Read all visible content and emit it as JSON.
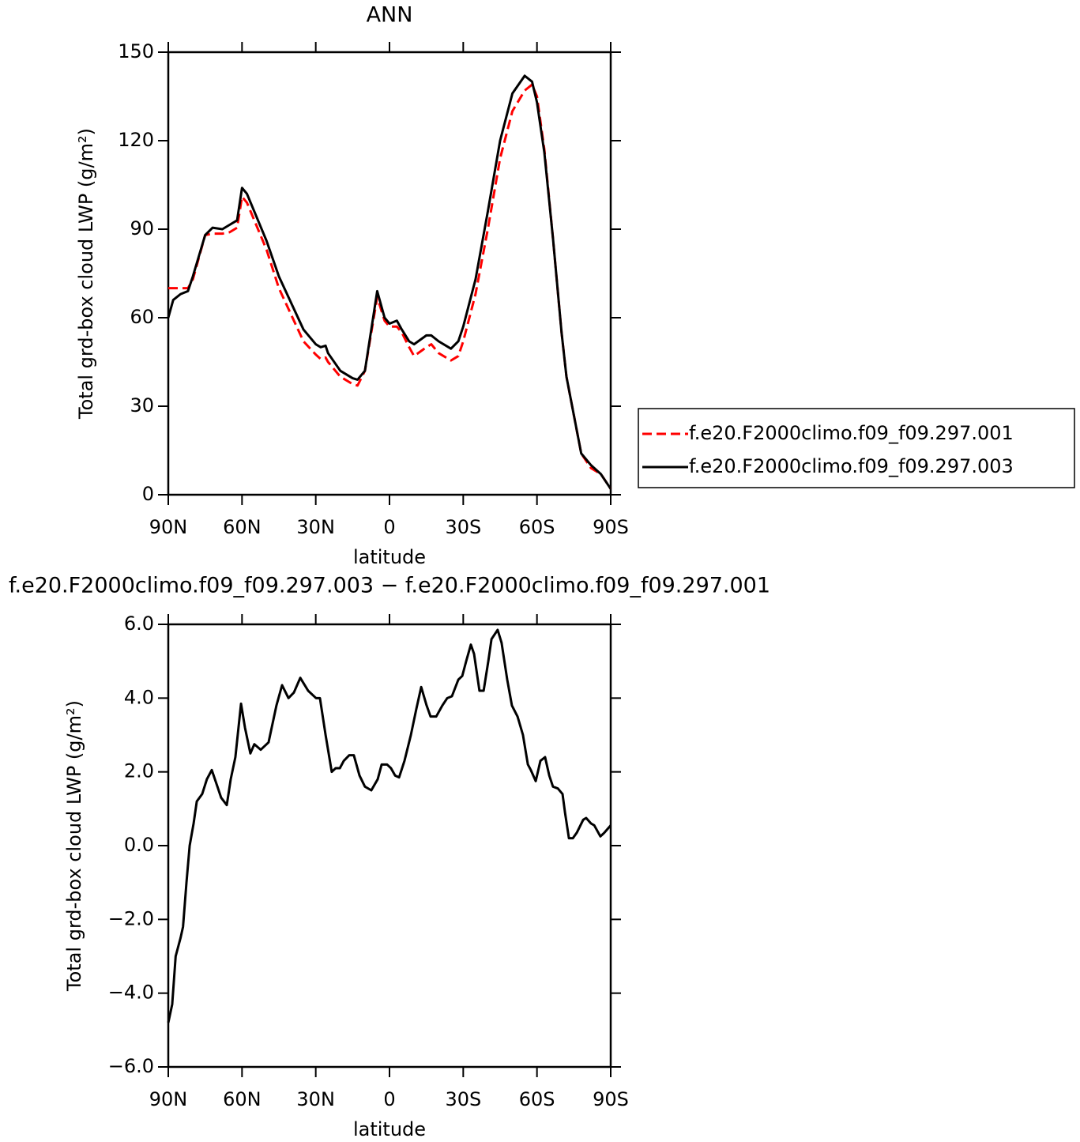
{
  "chart_data": [
    {
      "type": "line",
      "title": "ANN",
      "xlabel": "latitude",
      "ylabel": "Total grd-box cloud LWP (g/m²)",
      "x": [
        90,
        88,
        85,
        82,
        80,
        75,
        72,
        68,
        65,
        62,
        60,
        58,
        55,
        50,
        45,
        40,
        35,
        30,
        28,
        26,
        25,
        20,
        15,
        13,
        10,
        5,
        2,
        0,
        -3,
        -5,
        -8,
        -10,
        -15,
        -17,
        -20,
        -25,
        -28,
        -30,
        -35,
        -40,
        -45,
        -50,
        -55,
        -58,
        -60,
        -63,
        -66.5,
        -70,
        -72,
        -75,
        -78,
        -82,
        -86,
        -90
      ],
      "series": [
        {
          "name": "f.e20.F2000climo.f09_f09.297.001",
          "color": "#ff0000",
          "dash": "dashed",
          "values": [
            70,
            70,
            70,
            70,
            73,
            88,
            88.5,
            88.5,
            89,
            90.5,
            101,
            99,
            93,
            83,
            70,
            61,
            52,
            47.5,
            46,
            46.5,
            45,
            40,
            37.5,
            37,
            42,
            67,
            59,
            57,
            57,
            55,
            50,
            47,
            50,
            51,
            48,
            45.5,
            47,
            52,
            68,
            90,
            114,
            130,
            137,
            139,
            135,
            117,
            87,
            55,
            40,
            27,
            14,
            9,
            7,
            2
          ]
        },
        {
          "name": "f.e20.F2000climo.f09_f09.297.003",
          "color": "#000000",
          "dash": "solid",
          "values": [
            60,
            66,
            68,
            69,
            74,
            88,
            90.5,
            90,
            91.5,
            93,
            104,
            102,
            96,
            86,
            74,
            65,
            56,
            51,
            50,
            50.5,
            48,
            42,
            39.5,
            39,
            42,
            69,
            60,
            58,
            59,
            56,
            52,
            51,
            54,
            54,
            52,
            49.5,
            52,
            57,
            73,
            96,
            120,
            136,
            142,
            140,
            133,
            116,
            87,
            55,
            40,
            27,
            14,
            10,
            7,
            2
          ]
        }
      ],
      "xlim": [
        90,
        -90
      ],
      "xticks": [
        {
          "value": 90,
          "label": "90N"
        },
        {
          "value": 60,
          "label": "60N"
        },
        {
          "value": 30,
          "label": "30N"
        },
        0,
        {
          "value": -30,
          "label": "30S"
        },
        {
          "value": -60,
          "label": "60S"
        },
        {
          "value": -90,
          "label": "90S"
        }
      ],
      "ylim": [
        0,
        150
      ],
      "yticks": [
        0,
        30,
        60,
        90,
        120,
        150
      ],
      "legend": "right"
    },
    {
      "type": "line",
      "title": "f.e20.F2000climo.f09_f09.297.003 − f.e20.F2000climo.f09_f09.297.001",
      "xlabel": "latitude",
      "ylabel": "Total grd-box cloud LWP (g/m²)",
      "x": [
        90,
        88.4,
        87,
        85,
        84,
        82.6,
        81.3,
        79.7,
        78.4,
        76.2,
        74.3,
        72.3,
        70,
        68.5,
        66.2,
        64.6,
        62.7,
        60.4,
        58.8,
        56.6,
        55,
        52.4,
        49.2,
        46,
        43.7,
        41.1,
        38.9,
        36.3,
        33.1,
        29.9,
        28.3,
        26,
        23.5,
        21.9,
        20.2,
        18.6,
        16.4,
        14.5,
        12.2,
        10,
        7.4,
        4.8,
        3.2,
        1,
        -0.6,
        -2.3,
        -3.9,
        -6.1,
        -8.7,
        -10.9,
        -12.9,
        -15.1,
        -16.7,
        -19,
        -21.5,
        -23.5,
        -25.4,
        -28,
        -29.6,
        -31.2,
        -33.1,
        -34.4,
        -36.6,
        -38.3,
        -40.2,
        -41.5,
        -44,
        -45.6,
        -47.9,
        -49.8,
        -52.1,
        -54.3,
        -56.3,
        -57.5,
        -59.5,
        -61.4,
        -63.3,
        -65,
        -66.5,
        -68.5,
        -70.4,
        -71.4,
        -73,
        -74.6,
        -76.2,
        -78.8,
        -80,
        -82,
        -83.3,
        -85.8,
        -87.4,
        -90
      ],
      "series": [
        {
          "name": "f.e20.F2000climo.f09_f09.297.003 − f.e20.F2000climo.f09_f09.297.001",
          "color": "#000000",
          "dash": "solid",
          "values": [
            -4.8,
            -4.3,
            -3.0,
            -2.5,
            -2.2,
            -1.0,
            0,
            0.6,
            1.2,
            1.4,
            1.8,
            2.05,
            1.6,
            1.3,
            1.1,
            1.8,
            2.4,
            3.85,
            3.2,
            2.5,
            2.75,
            2.6,
            2.8,
            3.8,
            4.35,
            4.0,
            4.15,
            4.55,
            4.2,
            4.0,
            4.0,
            3.0,
            2.0,
            2.1,
            2.1,
            2.3,
            2.45,
            2.45,
            1.9,
            1.6,
            1.5,
            1.8,
            2.2,
            2.2,
            2.1,
            1.9,
            1.85,
            2.3,
            3.0,
            3.7,
            4.3,
            3.8,
            3.5,
            3.5,
            3.8,
            4.0,
            4.05,
            4.5,
            4.6,
            5.0,
            5.45,
            5.2,
            4.2,
            4.2,
            5.0,
            5.6,
            5.85,
            5.5,
            4.5,
            3.8,
            3.5,
            3.0,
            2.2,
            2.05,
            1.75,
            2.3,
            2.4,
            1.9,
            1.6,
            1.55,
            1.4,
            0.9,
            0.2,
            0.2,
            0.35,
            0.7,
            0.75,
            0.6,
            0.55,
            0.25,
            0.35,
            0.55
          ]
        }
      ],
      "xlim": [
        90,
        -90
      ],
      "xticks": [
        {
          "value": 90,
          "label": "90N"
        },
        {
          "value": 60,
          "label": "60N"
        },
        {
          "value": 30,
          "label": "30N"
        },
        0,
        {
          "value": -30,
          "label": "30S"
        },
        {
          "value": -60,
          "label": "60S"
        },
        {
          "value": -90,
          "label": "90S"
        }
      ],
      "ylim": [
        -6,
        6
      ],
      "yticks": [
        {
          "value": -6,
          "label": "−6.0"
        },
        {
          "value": -4,
          "label": "−4.0"
        },
        {
          "value": -2,
          "label": "−2.0"
        },
        {
          "value": 0,
          "label": "0.0"
        },
        {
          "value": 2,
          "label": "2.0"
        },
        {
          "value": 4,
          "label": "4.0"
        },
        {
          "value": 6,
          "label": "6.0"
        }
      ]
    }
  ]
}
